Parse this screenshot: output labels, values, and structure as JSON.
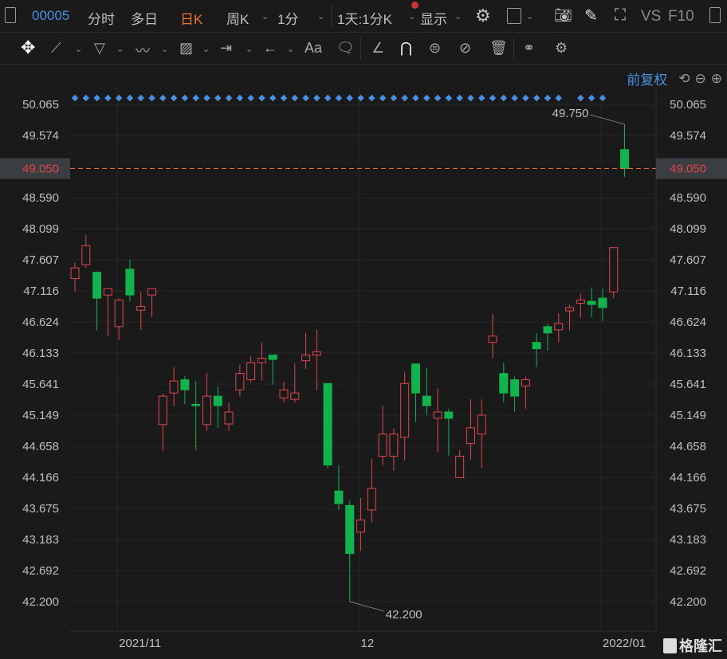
{
  "toolbar": {
    "code": "00005",
    "tabs": [
      "分时",
      "多日",
      "日K",
      "周K",
      "1分"
    ],
    "active_tab": "日K",
    "range": "1天:1分K",
    "display": "显示",
    "vs": "VS",
    "f10": "F10"
  },
  "drawing_tools": [
    "move-icon",
    "line-icon",
    "polyline-icon",
    "wave-icon",
    "fib-icon",
    "measure-icon",
    "arrow-icon",
    "text-icon",
    "comment-icon",
    "pen-icon",
    "magnet-icon",
    "lock-icon",
    "hide-icon",
    "trash-icon",
    "compare-icon",
    "settings-icon"
  ],
  "drawing_text_label": "Aa",
  "adjust": {
    "label": "前复权"
  },
  "colors": {
    "up": "#e0474c",
    "down": "#12b24c",
    "accent": "#4a90e2",
    "active": "#f0782e",
    "bg": "#1a1a1b",
    "price_line": "#e06c3c"
  },
  "watermark": "格隆汇",
  "chart_data": {
    "type": "candlestick",
    "y_ticks": [
      "50.065",
      "49.574",
      "49.050",
      "48.590",
      "48.099",
      "47.607",
      "47.116",
      "46.624",
      "46.133",
      "45.641",
      "45.149",
      "44.658",
      "44.166",
      "43.675",
      "43.183",
      "42.692",
      "42.200"
    ],
    "ylim": [
      42.2,
      50.065
    ],
    "x_labels": [
      {
        "label": "2021/11",
        "index": 4
      },
      {
        "label": "12",
        "index": 26
      },
      {
        "label": "2022/01",
        "index": 48
      }
    ],
    "current_price": "49.050",
    "high_label": "49.750",
    "low_label": "42.200",
    "markers_missing": [
      45,
      49,
      50
    ],
    "ohlc": [
      [
        47.31,
        47.56,
        47.1,
        47.48
      ],
      [
        47.53,
        48.0,
        47.48,
        47.83
      ],
      [
        47.41,
        47.41,
        46.49,
        47.0
      ],
      [
        47.05,
        47.15,
        46.4,
        47.15
      ],
      [
        46.55,
        46.99,
        46.34,
        46.97
      ],
      [
        47.46,
        47.61,
        46.95,
        47.05
      ],
      [
        46.81,
        47.1,
        46.5,
        46.87
      ],
      [
        47.05,
        47.15,
        46.7,
        47.15
      ],
      [
        45.0,
        45.49,
        44.58,
        45.45
      ],
      [
        45.5,
        45.91,
        45.29,
        45.69
      ],
      [
        45.71,
        45.77,
        45.32,
        45.55
      ],
      [
        45.32,
        45.69,
        44.6,
        45.3
      ],
      [
        45.0,
        45.82,
        44.9,
        45.45
      ],
      [
        45.45,
        45.6,
        44.95,
        45.3
      ],
      [
        45.01,
        45.35,
        44.9,
        45.2
      ],
      [
        45.55,
        45.95,
        45.45,
        45.81
      ],
      [
        45.71,
        46.08,
        45.67,
        45.98
      ],
      [
        45.98,
        46.3,
        45.69,
        46.05
      ],
      [
        46.1,
        46.1,
        45.63,
        46.03
      ],
      [
        45.42,
        45.68,
        45.35,
        45.55
      ],
      [
        45.4,
        45.97,
        45.35,
        45.5
      ],
      [
        46.01,
        46.45,
        45.88,
        46.1
      ],
      [
        46.1,
        46.5,
        45.54,
        46.15
      ],
      [
        45.65,
        45.65,
        44.31,
        44.36
      ],
      [
        43.95,
        44.36,
        43.65,
        43.75
      ],
      [
        43.72,
        43.8,
        42.2,
        42.96
      ],
      [
        43.3,
        43.84,
        43.0,
        43.49
      ],
      [
        43.65,
        44.46,
        43.46,
        43.99
      ],
      [
        44.5,
        45.3,
        44.36,
        44.85
      ],
      [
        44.5,
        44.94,
        44.27,
        44.85
      ],
      [
        44.8,
        45.84,
        44.43,
        45.65
      ],
      [
        45.96,
        45.96,
        45.04,
        45.5
      ],
      [
        45.45,
        45.9,
        45.15,
        45.3
      ],
      [
        45.1,
        45.57,
        44.56,
        45.2
      ],
      [
        45.2,
        45.25,
        44.51,
        45.1
      ],
      [
        44.16,
        44.6,
        44.16,
        44.5
      ],
      [
        44.7,
        45.4,
        44.45,
        44.95
      ],
      [
        44.85,
        45.4,
        44.31,
        45.15
      ],
      [
        46.3,
        46.75,
        46.05,
        46.4
      ],
      [
        45.81,
        45.98,
        45.35,
        45.5
      ],
      [
        45.71,
        45.76,
        45.2,
        45.45
      ],
      [
        45.61,
        45.76,
        45.25,
        45.71
      ],
      [
        46.3,
        46.45,
        45.91,
        46.2
      ],
      [
        46.55,
        46.6,
        46.17,
        46.45
      ],
      [
        46.5,
        46.76,
        46.3,
        46.6
      ],
      [
        46.8,
        46.9,
        46.49,
        46.85
      ],
      [
        46.92,
        47.07,
        46.69,
        46.97
      ],
      [
        46.95,
        47.17,
        46.7,
        46.9
      ],
      [
        47.0,
        47.15,
        46.64,
        46.85
      ],
      [
        47.1,
        47.8,
        47.0,
        47.8
      ],
      [
        49.35,
        49.75,
        48.92,
        49.05
      ]
    ]
  }
}
